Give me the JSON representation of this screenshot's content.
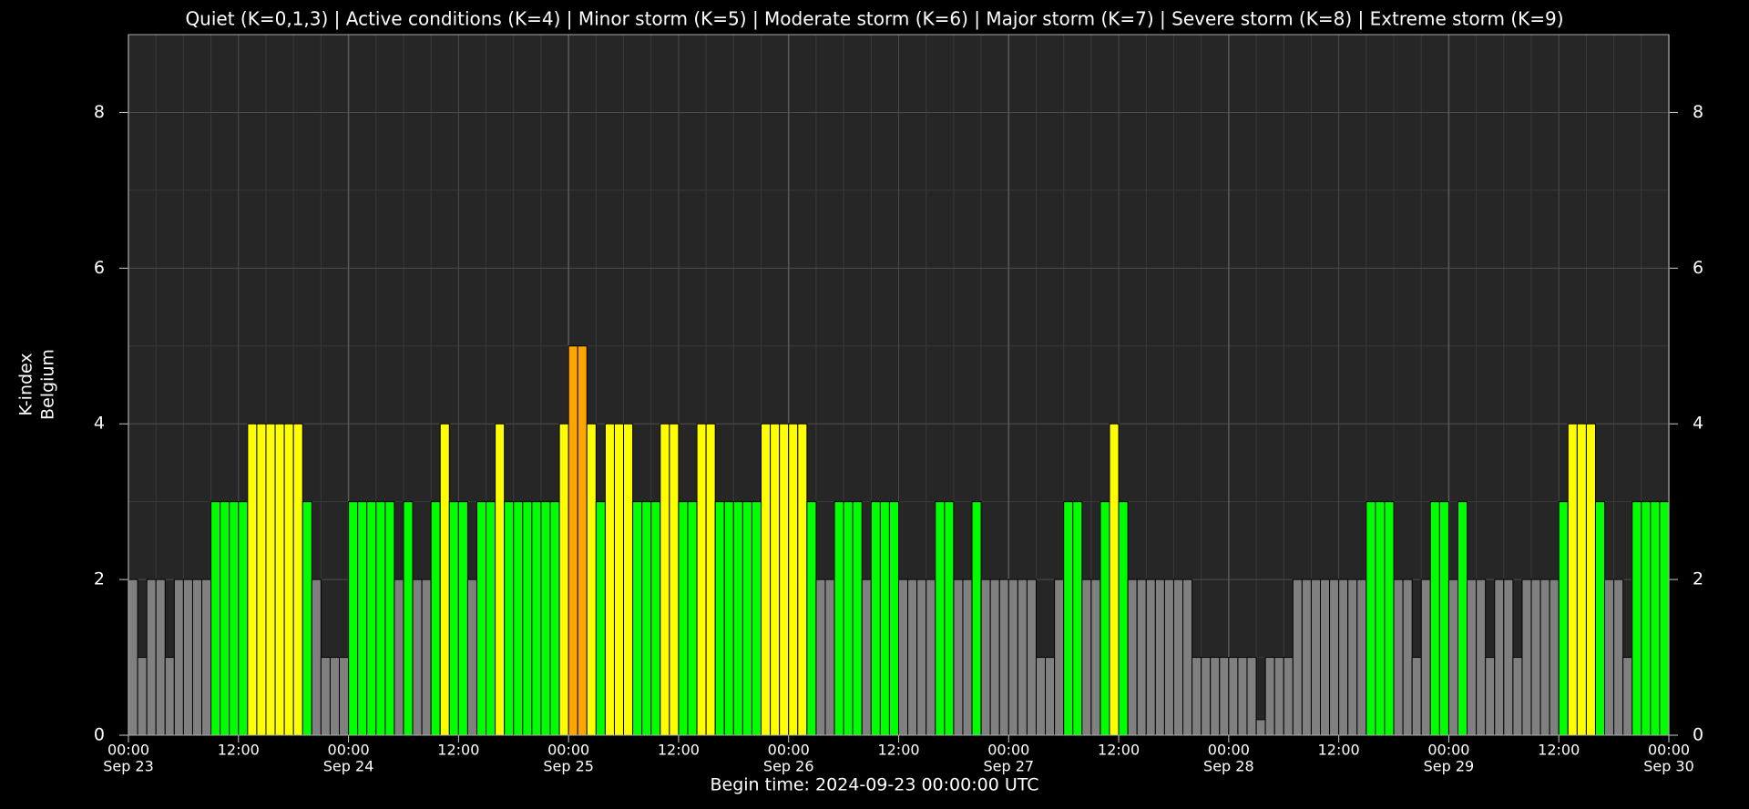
{
  "chart_data": {
    "type": "bar",
    "title": "Quiet (K=0,1,3) | Active conditions (K=4) | Minor storm (K=5) | Moderate storm (K=6) | Major storm (K=7) | Severe storm (K=8) | Extreme storm (K=9)",
    "y_label": [
      "K-index",
      "Belgium"
    ],
    "x_label": "Begin time: 2024-09-23 00:00:00 UTC",
    "x": [
      0,
      1,
      2,
      3,
      4,
      5,
      6,
      7,
      8,
      9,
      10,
      11,
      12,
      13,
      14,
      15,
      16,
      17,
      18,
      19,
      20,
      21,
      22,
      23,
      24,
      25,
      26,
      27,
      28,
      29,
      30,
      31,
      32,
      33,
      34,
      35,
      36,
      37,
      38,
      39,
      40,
      41,
      42,
      43,
      44,
      45,
      46,
      47,
      48,
      49,
      50,
      51,
      52,
      53,
      54,
      55,
      56,
      57,
      58,
      59,
      60,
      61,
      62,
      63,
      64,
      65,
      66,
      67,
      68,
      69,
      70,
      71,
      72,
      73,
      74,
      75,
      76,
      77,
      78,
      79,
      80,
      81,
      82,
      83,
      84,
      85,
      86,
      87,
      88,
      89,
      90,
      91,
      92,
      93,
      94,
      95,
      96,
      97,
      98,
      99,
      100,
      101,
      102,
      103,
      104,
      105,
      106,
      107,
      108,
      109,
      110,
      111,
      112,
      113,
      114,
      115,
      116,
      117,
      118,
      119,
      120,
      121,
      122,
      123,
      124,
      125,
      126,
      127,
      128,
      129,
      130,
      131,
      132,
      133,
      134,
      135,
      136,
      137,
      138,
      139,
      140,
      141,
      142,
      143,
      144,
      145,
      146,
      147,
      148,
      149,
      150,
      151,
      152,
      153,
      154,
      155,
      156,
      157,
      158,
      159,
      160,
      161,
      162,
      163,
      164,
      165,
      166,
      167
    ],
    "values": [
      2,
      1,
      2,
      2,
      1,
      2,
      2,
      2,
      2,
      3,
      3,
      3,
      3,
      4,
      4,
      4,
      4,
      4,
      4,
      3,
      2,
      1,
      1,
      1,
      3,
      3,
      3,
      3,
      3,
      2,
      3,
      2,
      2,
      3,
      4,
      3,
      3,
      2,
      3,
      3,
      4,
      3,
      3,
      3,
      3,
      3,
      3,
      4,
      5,
      5,
      4,
      3,
      4,
      4,
      4,
      3,
      3,
      3,
      4,
      4,
      3,
      3,
      4,
      4,
      3,
      3,
      3,
      3,
      3,
      4,
      4,
      4,
      4,
      4,
      3,
      2,
      2,
      3,
      3,
      3,
      2,
      3,
      3,
      3,
      2,
      2,
      2,
      2,
      3,
      3,
      2,
      2,
      3,
      2,
      2,
      2,
      2,
      2,
      2,
      1,
      1,
      2,
      3,
      3,
      2,
      2,
      3,
      4,
      3,
      2,
      2,
      2,
      2,
      2,
      2,
      2,
      1,
      1,
      1,
      1,
      1,
      1,
      1,
      0.2,
      1,
      1,
      1,
      2,
      2,
      2,
      2,
      2,
      2,
      2,
      2,
      3,
      3,
      3,
      2,
      2,
      1,
      2,
      3,
      3,
      2,
      3,
      2,
      2,
      1,
      2,
      2,
      1,
      2,
      2,
      2,
      2,
      3,
      4,
      4,
      4,
      3,
      2,
      2,
      1,
      3,
      3,
      3,
      3
    ],
    "k_colors": [
      "#808080",
      "#808080",
      "#808080",
      "#00ff00",
      "#ffff00",
      "#ffa500"
    ],
    "xlim": [
      0,
      168
    ],
    "xticks": [
      {
        "value": 0,
        "label": "00:00",
        "date": "Sep 23"
      },
      {
        "value": 12,
        "label": "12:00"
      },
      {
        "value": 24,
        "label": "00:00",
        "date": "Sep 24"
      },
      {
        "value": 36,
        "label": "12:00"
      },
      {
        "value": 48,
        "label": "00:00",
        "date": "Sep 25"
      },
      {
        "value": 60,
        "label": "12:00"
      },
      {
        "value": 72,
        "label": "00:00",
        "date": "Sep 26"
      },
      {
        "value": 84,
        "label": "12:00"
      },
      {
        "value": 96,
        "label": "00:00",
        "date": "Sep 27"
      },
      {
        "value": 108,
        "label": "12:00"
      },
      {
        "value": 120,
        "label": "00:00",
        "date": "Sep 28"
      },
      {
        "value": 132,
        "label": "12:00"
      },
      {
        "value": 144,
        "label": "00:00",
        "date": "Sep 29"
      },
      {
        "value": 156,
        "label": "12:00"
      },
      {
        "value": 168,
        "label": "00:00",
        "date": "Sep 30"
      }
    ],
    "ylim": [
      0,
      9
    ],
    "yticks": [
      0,
      2,
      4,
      6,
      8
    ],
    "grid": true
  }
}
